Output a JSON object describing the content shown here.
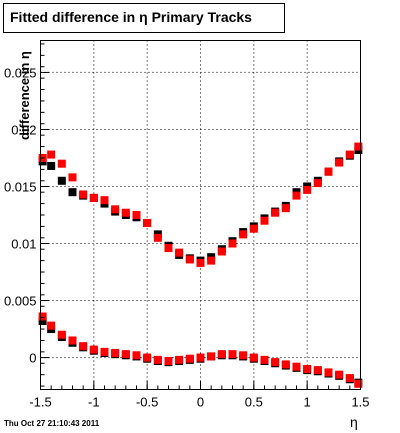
{
  "title": "Fitted difference in  η  Primary Tracks",
  "ylabel": "difference in η",
  "xlabel": "η",
  "footer": "Thu  Oct 27 21:10:43 2011",
  "chart_data": {
    "type": "scatter",
    "title": "Fitted difference in  η  Primary Tracks",
    "xlabel": "η",
    "ylabel": "difference in η",
    "xlim": [
      -1.5,
      1.5
    ],
    "ylim": [
      -0.0028,
      0.0278
    ],
    "xticks": [
      -1.5,
      -1,
      -0.5,
      0,
      0.5,
      1,
      1.5
    ],
    "xtick_labels": [
      "-1.5",
      "-1",
      "-0.5",
      "0",
      "0.5",
      "1",
      "1.5"
    ],
    "yticks": [
      0,
      0.005,
      0.01,
      0.015,
      0.02,
      0.025
    ],
    "ytick_labels": [
      "0",
      "0.005",
      "0.01",
      "0.015",
      "0.02",
      "0.025"
    ],
    "grid": true,
    "colors": {
      "black_series": "#000000",
      "red_series": "#ff0000"
    },
    "series": [
      {
        "color": "black",
        "x": [
          -1.48,
          -1.4,
          -1.3,
          -1.2,
          -1.1,
          -1.0,
          -0.9,
          -0.8,
          -0.7,
          -0.6,
          -0.5,
          -0.4,
          -0.3,
          -0.2,
          -0.1,
          0.0,
          0.1,
          0.2,
          0.3,
          0.4,
          0.5,
          0.6,
          0.7,
          0.8,
          0.9,
          1.0,
          1.1,
          1.2,
          1.3,
          1.4,
          1.48
        ],
        "y": [
          0.0172,
          0.0168,
          0.0155,
          0.0145,
          0.0142,
          0.014,
          0.0135,
          0.0128,
          0.0125,
          0.0123,
          0.0118,
          0.0108,
          0.0098,
          0.009,
          0.0087,
          0.0085,
          0.0088,
          0.0095,
          0.0102,
          0.011,
          0.0115,
          0.0122,
          0.0128,
          0.0133,
          0.0145,
          0.015,
          0.0155,
          0.0163,
          0.0172,
          0.0177,
          0.0182
        ]
      },
      {
        "color": "red",
        "x": [
          -1.48,
          -1.4,
          -1.3,
          -1.2,
          -1.1,
          -1.0,
          -0.9,
          -0.8,
          -0.7,
          -0.6,
          -0.5,
          -0.4,
          -0.3,
          -0.2,
          -0.1,
          0.0,
          0.1,
          0.2,
          0.3,
          0.4,
          0.5,
          0.6,
          0.7,
          0.8,
          0.9,
          1.0,
          1.1,
          1.2,
          1.3,
          1.4,
          1.48
        ],
        "y": [
          0.0175,
          0.0178,
          0.017,
          0.0158,
          0.0143,
          0.014,
          0.0138,
          0.013,
          0.0127,
          0.0125,
          0.0118,
          0.0105,
          0.0096,
          0.0092,
          0.0086,
          0.0083,
          0.0085,
          0.0093,
          0.01,
          0.0108,
          0.0113,
          0.012,
          0.0127,
          0.0131,
          0.0142,
          0.0147,
          0.0153,
          0.0163,
          0.0171,
          0.0178,
          0.0185
        ]
      },
      {
        "color": "black",
        "x": [
          -1.48,
          -1.4,
          -1.3,
          -1.2,
          -1.1,
          -1.0,
          -0.9,
          -0.8,
          -0.7,
          -0.6,
          -0.5,
          -0.4,
          -0.3,
          -0.2,
          -0.1,
          0.0,
          0.1,
          0.2,
          0.3,
          0.4,
          0.5,
          0.6,
          0.7,
          0.8,
          0.9,
          1.0,
          1.1,
          1.2,
          1.3,
          1.4,
          1.48
        ],
        "y": [
          0.0032,
          0.0025,
          0.0018,
          0.0013,
          0.0009,
          0.0006,
          0.0004,
          0.0003,
          0.0002,
          0.0001,
          -0.0001,
          -0.0003,
          -0.0004,
          -0.0003,
          -0.0002,
          -0.0001,
          0.0001,
          0.0002,
          0.0002,
          0.0001,
          -0.0001,
          -0.0003,
          -0.0005,
          -0.0007,
          -0.0009,
          -0.0011,
          -0.0012,
          -0.0014,
          -0.0016,
          -0.0019,
          -0.0022
        ]
      },
      {
        "color": "red",
        "x": [
          -1.48,
          -1.4,
          -1.3,
          -1.2,
          -1.1,
          -1.0,
          -0.9,
          -0.8,
          -0.7,
          -0.6,
          -0.5,
          -0.4,
          -0.3,
          -0.2,
          -0.1,
          0.0,
          0.1,
          0.2,
          0.3,
          0.4,
          0.5,
          0.6,
          0.7,
          0.8,
          0.9,
          1.0,
          1.1,
          1.2,
          1.3,
          1.4,
          1.48
        ],
        "y": [
          0.0036,
          0.0028,
          0.002,
          0.0015,
          0.001,
          0.0007,
          0.0005,
          0.0004,
          0.0003,
          0.0002,
          0.0,
          -0.0002,
          -0.0003,
          -0.0002,
          -0.0001,
          0.0,
          0.0001,
          0.0003,
          0.0003,
          0.0002,
          0.0,
          -0.0002,
          -0.0004,
          -0.0006,
          -0.0008,
          -0.001,
          -0.0011,
          -0.0013,
          -0.0015,
          -0.0018,
          -0.0023
        ]
      }
    ]
  }
}
